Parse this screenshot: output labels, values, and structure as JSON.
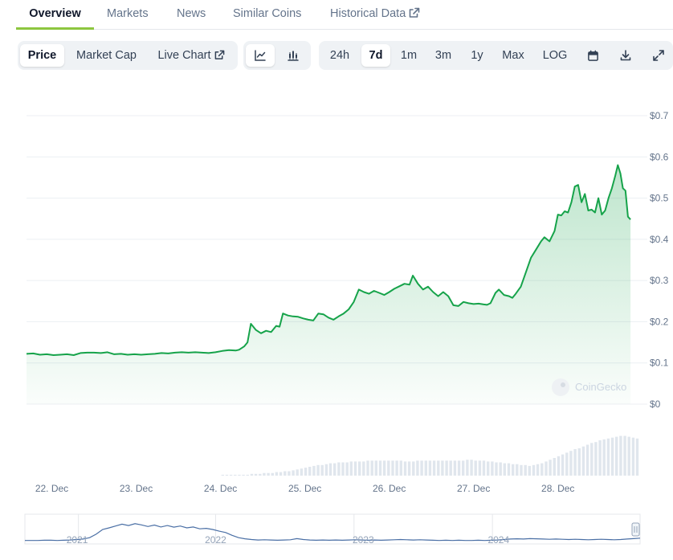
{
  "tabs": [
    {
      "label": "Overview",
      "active": true
    },
    {
      "label": "Markets"
    },
    {
      "label": "News"
    },
    {
      "label": "Similar Coins"
    },
    {
      "label": "Historical Data",
      "icon": "external-link-icon"
    }
  ],
  "toolbar": {
    "metrics": [
      {
        "label": "Price",
        "active": true
      },
      {
        "label": "Market Cap"
      },
      {
        "label": "Live Chart",
        "icon": "external-link-icon"
      }
    ],
    "chart_types": [
      {
        "icon": "line-chart-icon",
        "active": true
      },
      {
        "icon": "candlestick-chart-icon"
      }
    ],
    "ranges": [
      {
        "label": "24h"
      },
      {
        "label": "7d",
        "active": true
      },
      {
        "label": "1m"
      },
      {
        "label": "3m"
      },
      {
        "label": "1y"
      },
      {
        "label": "Max"
      },
      {
        "label": "LOG"
      }
    ],
    "actions": [
      {
        "icon": "calendar-icon"
      },
      {
        "icon": "download-icon"
      },
      {
        "icon": "fullscreen-icon"
      }
    ]
  },
  "watermark": "CoinGecko",
  "colors": {
    "line": "#16a34a",
    "area_top": "#16a34a",
    "volume": "#cbd5e1",
    "navigator_line": "#4a6fa5",
    "accent_tab": "#8dc63f"
  },
  "chart_data": {
    "type": "area",
    "ylim": [
      0,
      0.7
    ],
    "yticks": [
      {
        "v": 0,
        "label": "$0"
      },
      {
        "v": 0.1,
        "label": "$0.1"
      },
      {
        "v": 0.2,
        "label": "$0.2"
      },
      {
        "v": 0.3,
        "label": "$0.3"
      },
      {
        "v": 0.4,
        "label": "$0.4"
      },
      {
        "v": 0.5,
        "label": "$0.5"
      },
      {
        "v": 0.6,
        "label": "$0.6"
      },
      {
        "v": 0.7,
        "label": "$0.7"
      }
    ],
    "xlim": [
      21.7,
      28.65
    ],
    "xticks": [
      {
        "v": 22,
        "label": "22. Dec"
      },
      {
        "v": 23,
        "label": "23. Dec"
      },
      {
        "v": 24,
        "label": "24. Dec"
      },
      {
        "v": 25,
        "label": "25. Dec"
      },
      {
        "v": 26,
        "label": "26. Dec"
      },
      {
        "v": 27,
        "label": "27. Dec"
      },
      {
        "v": 28,
        "label": "28. Dec"
      }
    ],
    "price": [
      [
        21.7,
        0.122
      ],
      [
        21.78,
        0.123
      ],
      [
        21.86,
        0.12
      ],
      [
        21.94,
        0.121
      ],
      [
        22.02,
        0.119
      ],
      [
        22.1,
        0.12
      ],
      [
        22.18,
        0.121
      ],
      [
        22.26,
        0.119
      ],
      [
        22.34,
        0.124
      ],
      [
        22.42,
        0.125
      ],
      [
        22.5,
        0.125
      ],
      [
        22.58,
        0.124
      ],
      [
        22.66,
        0.126
      ],
      [
        22.74,
        0.121
      ],
      [
        22.82,
        0.122
      ],
      [
        22.9,
        0.12
      ],
      [
        22.98,
        0.121
      ],
      [
        23.06,
        0.12
      ],
      [
        23.14,
        0.121
      ],
      [
        23.22,
        0.122
      ],
      [
        23.3,
        0.124
      ],
      [
        23.38,
        0.123
      ],
      [
        23.46,
        0.125
      ],
      [
        23.54,
        0.126
      ],
      [
        23.62,
        0.125
      ],
      [
        23.7,
        0.126
      ],
      [
        23.78,
        0.125
      ],
      [
        23.86,
        0.124
      ],
      [
        23.94,
        0.126
      ],
      [
        24.02,
        0.129
      ],
      [
        24.1,
        0.131
      ],
      [
        24.18,
        0.13
      ],
      [
        24.22,
        0.132
      ],
      [
        24.28,
        0.14
      ],
      [
        24.32,
        0.15
      ],
      [
        24.36,
        0.195
      ],
      [
        24.42,
        0.18
      ],
      [
        24.48,
        0.172
      ],
      [
        24.54,
        0.178
      ],
      [
        24.6,
        0.175
      ],
      [
        24.66,
        0.19
      ],
      [
        24.7,
        0.188
      ],
      [
        24.74,
        0.22
      ],
      [
        24.8,
        0.215
      ],
      [
        24.86,
        0.213
      ],
      [
        24.92,
        0.212
      ],
      [
        24.98,
        0.208
      ],
      [
        25.04,
        0.205
      ],
      [
        25.1,
        0.203
      ],
      [
        25.16,
        0.22
      ],
      [
        25.22,
        0.218
      ],
      [
        25.28,
        0.21
      ],
      [
        25.34,
        0.205
      ],
      [
        25.4,
        0.213
      ],
      [
        25.46,
        0.22
      ],
      [
        25.52,
        0.23
      ],
      [
        25.58,
        0.248
      ],
      [
        25.64,
        0.278
      ],
      [
        25.7,
        0.272
      ],
      [
        25.76,
        0.268
      ],
      [
        25.82,
        0.275
      ],
      [
        25.88,
        0.27
      ],
      [
        25.94,
        0.265
      ],
      [
        26.0,
        0.272
      ],
      [
        26.06,
        0.28
      ],
      [
        26.12,
        0.286
      ],
      [
        26.18,
        0.292
      ],
      [
        26.24,
        0.29
      ],
      [
        26.28,
        0.312
      ],
      [
        26.34,
        0.292
      ],
      [
        26.4,
        0.278
      ],
      [
        26.46,
        0.285
      ],
      [
        26.52,
        0.272
      ],
      [
        26.58,
        0.262
      ],
      [
        26.64,
        0.272
      ],
      [
        26.7,
        0.262
      ],
      [
        26.76,
        0.24
      ],
      [
        26.82,
        0.238
      ],
      [
        26.88,
        0.248
      ],
      [
        26.94,
        0.245
      ],
      [
        27.0,
        0.243
      ],
      [
        27.06,
        0.244
      ],
      [
        27.12,
        0.242
      ],
      [
        27.16,
        0.241
      ],
      [
        27.2,
        0.245
      ],
      [
        27.26,
        0.27
      ],
      [
        27.3,
        0.278
      ],
      [
        27.36,
        0.265
      ],
      [
        27.42,
        0.262
      ],
      [
        27.46,
        0.258
      ],
      [
        27.5,
        0.268
      ],
      [
        27.56,
        0.285
      ],
      [
        27.62,
        0.32
      ],
      [
        27.68,
        0.355
      ],
      [
        27.74,
        0.375
      ],
      [
        27.8,
        0.395
      ],
      [
        27.84,
        0.405
      ],
      [
        27.9,
        0.395
      ],
      [
        27.96,
        0.42
      ],
      [
        28.0,
        0.46
      ],
      [
        28.04,
        0.458
      ],
      [
        28.08,
        0.468
      ],
      [
        28.12,
        0.465
      ],
      [
        28.16,
        0.49
      ],
      [
        28.2,
        0.528
      ],
      [
        28.24,
        0.532
      ],
      [
        28.28,
        0.49
      ],
      [
        28.32,
        0.51
      ],
      [
        28.36,
        0.47
      ],
      [
        28.4,
        0.472
      ],
      [
        28.44,
        0.465
      ],
      [
        28.48,
        0.5
      ],
      [
        28.52,
        0.46
      ],
      [
        28.56,
        0.47
      ],
      [
        28.6,
        0.5
      ],
      [
        28.64,
        0.524
      ],
      [
        28.68,
        0.555
      ],
      [
        28.71,
        0.58
      ],
      [
        28.74,
        0.56
      ],
      [
        28.77,
        0.524
      ],
      [
        28.8,
        0.518
      ],
      [
        28.83,
        0.455
      ],
      [
        28.86,
        0.448
      ]
    ],
    "volume": [
      0.0,
      0.0,
      0.0,
      0.0,
      0.0,
      0.0,
      0.0,
      0.0,
      0.0,
      0.0,
      0.0,
      0.0,
      0.0,
      0.0,
      0.0,
      0.0,
      0.0,
      0.0,
      0.0,
      0.0,
      0.0,
      0.0,
      0.0,
      0.0,
      0.0,
      0.0,
      0.0,
      0.0,
      0.0,
      0.0,
      0.0,
      0.0,
      0.0,
      0.0,
      0.0,
      0.0,
      0.0,
      0.0,
      0.0,
      0.0,
      0.0,
      0.0,
      0.0,
      0.0,
      0.0,
      0.0,
      0.0,
      0.01,
      0.01,
      0.01,
      0.01,
      0.01,
      0.01,
      0.01,
      0.02,
      0.02,
      0.02,
      0.03,
      0.03,
      0.03,
      0.04,
      0.04,
      0.05,
      0.05,
      0.06,
      0.07,
      0.08,
      0.09,
      0.1,
      0.11,
      0.12,
      0.12,
      0.13,
      0.14,
      0.14,
      0.15,
      0.15,
      0.15,
      0.16,
      0.16,
      0.16,
      0.16,
      0.17,
      0.17,
      0.17,
      0.17,
      0.17,
      0.17,
      0.17,
      0.17,
      0.17,
      0.16,
      0.16,
      0.16,
      0.17,
      0.17,
      0.17,
      0.17,
      0.17,
      0.17,
      0.17,
      0.17,
      0.17,
      0.17,
      0.17,
      0.17,
      0.18,
      0.18,
      0.17,
      0.17,
      0.17,
      0.16,
      0.16,
      0.15,
      0.15,
      0.14,
      0.14,
      0.13,
      0.13,
      0.12,
      0.12,
      0.11,
      0.12,
      0.13,
      0.14,
      0.16,
      0.18,
      0.2,
      0.22,
      0.24,
      0.26,
      0.28,
      0.3,
      0.31,
      0.33,
      0.35,
      0.37,
      0.38,
      0.4,
      0.41,
      0.42,
      0.43,
      0.44,
      0.45,
      0.45,
      0.44,
      0.43,
      0.42
    ],
    "navigator": {
      "labels": [
        "2021",
        "2022",
        "2023",
        "2024"
      ],
      "series": [
        0.08,
        0.08,
        0.08,
        0.09,
        0.09,
        0.08,
        0.09,
        0.1,
        0.12,
        0.14,
        0.2,
        0.35,
        0.55,
        0.62,
        0.7,
        0.78,
        0.72,
        0.8,
        0.75,
        0.68,
        0.74,
        0.66,
        0.72,
        0.65,
        0.7,
        0.62,
        0.66,
        0.58,
        0.6,
        0.55,
        0.48,
        0.42,
        0.3,
        0.2,
        0.15,
        0.12,
        0.1,
        0.11,
        0.1,
        0.09,
        0.1,
        0.11,
        0.16,
        0.12,
        0.1,
        0.09,
        0.1,
        0.09,
        0.1,
        0.09,
        0.1,
        0.11,
        0.1,
        0.09,
        0.1,
        0.09,
        0.1,
        0.11,
        0.12,
        0.11,
        0.1,
        0.11,
        0.1,
        0.09,
        0.08,
        0.09,
        0.08,
        0.09,
        0.08,
        0.08,
        0.09,
        0.08,
        0.09,
        0.1,
        0.12,
        0.14,
        0.15,
        0.14,
        0.16,
        0.15,
        0.14,
        0.13,
        0.14,
        0.13,
        0.12,
        0.13,
        0.12,
        0.11,
        0.12,
        0.13,
        0.12,
        0.11,
        0.12,
        0.14,
        0.16,
        0.18
      ]
    }
  }
}
